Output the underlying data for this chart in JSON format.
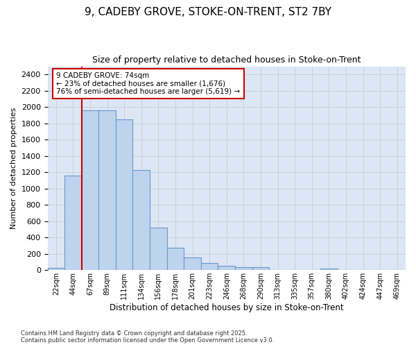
{
  "title_line1": "9, CADEBY GROVE, STOKE-ON-TRENT, ST2 7BY",
  "title_line2": "Size of property relative to detached houses in Stoke-on-Trent",
  "xlabel": "Distribution of detached houses by size in Stoke-on-Trent",
  "ylabel": "Number of detached properties",
  "categories": [
    "22sqm",
    "44sqm",
    "67sqm",
    "89sqm",
    "111sqm",
    "134sqm",
    "156sqm",
    "178sqm",
    "201sqm",
    "223sqm",
    "246sqm",
    "268sqm",
    "290sqm",
    "313sqm",
    "335sqm",
    "357sqm",
    "380sqm",
    "402sqm",
    "424sqm",
    "447sqm",
    "469sqm"
  ],
  "values": [
    30,
    1160,
    1960,
    1960,
    1850,
    1230,
    520,
    275,
    155,
    90,
    50,
    40,
    40,
    0,
    0,
    0,
    20,
    0,
    0,
    0,
    0
  ],
  "bar_color": "#bed3ed",
  "bar_edge_color": "#6699cc",
  "vline_color": "#cc0000",
  "vline_x_index": 2,
  "annotation_text_line1": "9 CADEBY GROVE: 74sqm",
  "annotation_text_line2": "← 23% of detached houses are smaller (1,676)",
  "annotation_text_line3": "76% of semi-detached houses are larger (5,619) →",
  "annotation_box_color": "#cc0000",
  "ylim": [
    0,
    2500
  ],
  "yticks": [
    0,
    200,
    400,
    600,
    800,
    1000,
    1200,
    1400,
    1600,
    1800,
    2000,
    2200,
    2400
  ],
  "grid_color": "#c8d0dc",
  "bg_color": "#dce6f4",
  "footer_line1": "Contains HM Land Registry data © Crown copyright and database right 2025.",
  "footer_line2": "Contains public sector information licensed under the Open Government Licence v3.0."
}
